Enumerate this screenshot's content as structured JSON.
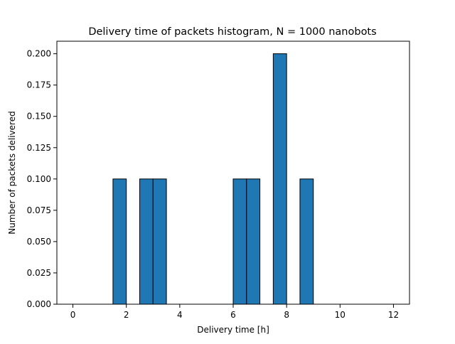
{
  "chart_data": {
    "type": "bar",
    "title": "Delivery time of packets histogram, N = 1000 nanobots",
    "xlabel": "Delivery time [h]",
    "ylabel": "Number of packets delivered",
    "xlim": [
      -0.6,
      12.6
    ],
    "ylim": [
      0,
      0.21
    ],
    "xticks": [
      0,
      2,
      4,
      6,
      8,
      10,
      12
    ],
    "yticks": [
      0.0,
      0.025,
      0.05,
      0.075,
      0.1,
      0.125,
      0.15,
      0.175,
      0.2
    ],
    "xtick_labels": [
      "0",
      "2",
      "4",
      "6",
      "8",
      "10",
      "12"
    ],
    "ytick_labels": [
      "0.000",
      "0.025",
      "0.050",
      "0.075",
      "0.100",
      "0.125",
      "0.150",
      "0.175",
      "0.200"
    ],
    "bin_edges": [
      0,
      0.5,
      1.0,
      1.5,
      2.0,
      2.5,
      3.0,
      3.5,
      4.0,
      4.5,
      5.0,
      5.5,
      6.0,
      6.5,
      7.0,
      7.5,
      8.0,
      8.5,
      9.0,
      9.5,
      10.0,
      10.5,
      11.0,
      11.5,
      12.0
    ],
    "values": [
      0,
      0,
      0,
      0.1,
      0,
      0.1,
      0.1,
      0,
      0,
      0,
      0,
      0,
      0.1,
      0.1,
      0,
      0.2,
      0,
      0.1,
      0,
      0,
      0,
      0,
      0,
      0
    ],
    "grid": false,
    "colors": {
      "bar_fill": "#1f77b4",
      "bar_edge": "#000000"
    }
  }
}
